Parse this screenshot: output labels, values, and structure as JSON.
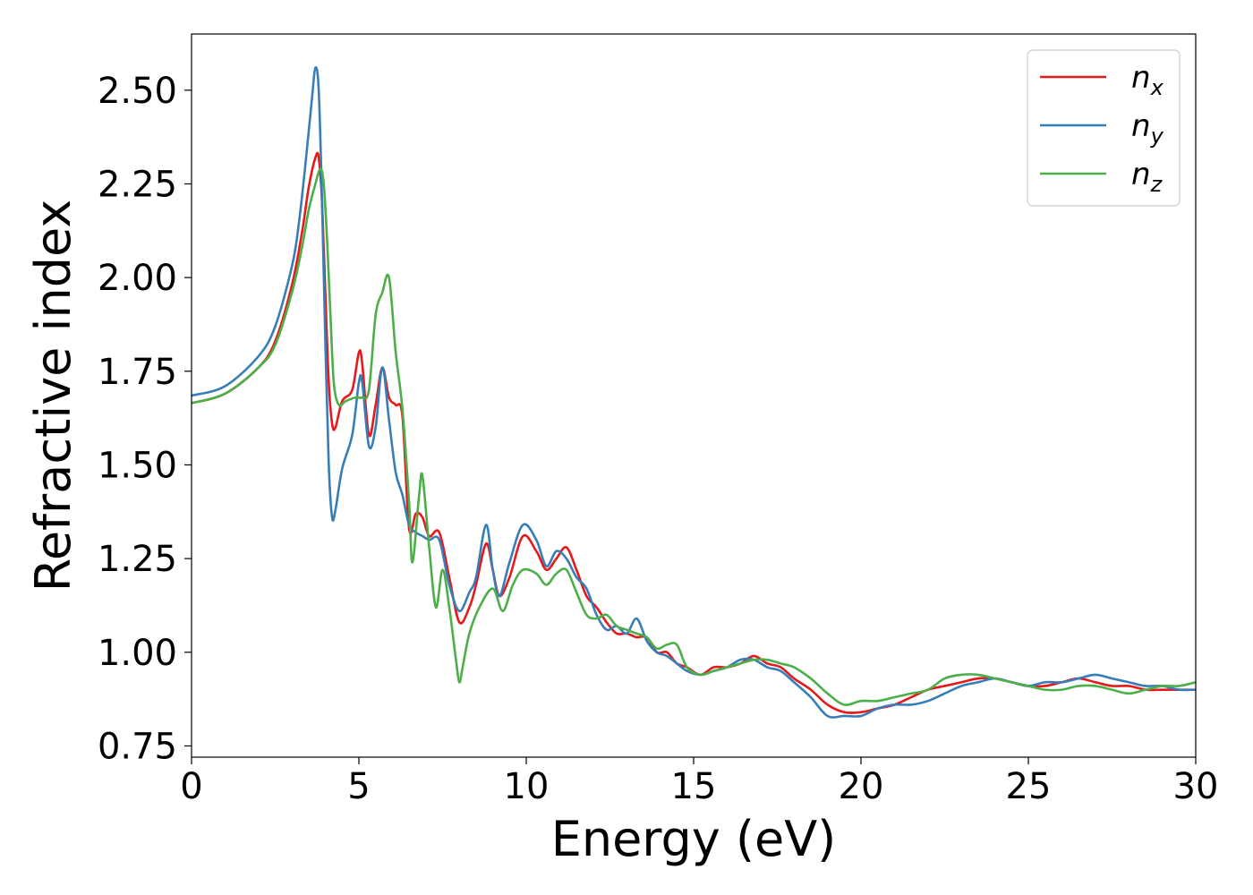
{
  "chart_data": {
    "type": "line",
    "title": "",
    "xlabel": "Energy (eV)",
    "ylabel": "Refractive index",
    "xlim": [
      0,
      30
    ],
    "ylim": [
      0.72,
      2.65
    ],
    "xticks": [
      0,
      5,
      10,
      15,
      20,
      25,
      30
    ],
    "xtick_labels": [
      "0",
      "5",
      "10",
      "15",
      "20",
      "25",
      "30"
    ],
    "yticks": [
      0.75,
      1.0,
      1.25,
      1.5,
      1.75,
      2.0,
      2.25,
      2.5
    ],
    "ytick_labels": [
      "0.75",
      "1.00",
      "1.25",
      "1.50",
      "1.75",
      "2.00",
      "2.25",
      "2.50"
    ],
    "grid": false,
    "legend_position": "top-right",
    "series": [
      {
        "name": "n",
        "subscript": "x",
        "color": "#e41a1c",
        "x": [
          0,
          1,
          2,
          2.5,
          3,
          3.3,
          3.5,
          3.7,
          3.8,
          3.9,
          4.0,
          4.1,
          4.2,
          4.3,
          4.5,
          4.8,
          5.0,
          5.1,
          5.3,
          5.5,
          5.7,
          5.9,
          6.1,
          6.3,
          6.5,
          6.7,
          6.9,
          7.1,
          7.4,
          7.7,
          8.0,
          8.3,
          8.5,
          8.8,
          9.0,
          9.2,
          9.5,
          9.9,
          10.3,
          10.6,
          10.9,
          11.2,
          11.5,
          11.8,
          12.1,
          12.4,
          12.7,
          13.0,
          13.3,
          13.6,
          13.9,
          14.2,
          14.5,
          14.8,
          15.2,
          15.6,
          16.0,
          16.4,
          16.8,
          17.2,
          17.6,
          18.0,
          18.5,
          19.0,
          19.5,
          20.0,
          20.5,
          21.0,
          21.5,
          22.0,
          22.5,
          23.0,
          23.5,
          24.0,
          24.5,
          25.0,
          25.5,
          26.0,
          26.5,
          27.0,
          27.5,
          28.0,
          28.5,
          29.0,
          29.5,
          30.0
        ],
        "y": [
          1.665,
          1.69,
          1.76,
          1.83,
          1.98,
          2.12,
          2.24,
          2.32,
          2.32,
          2.2,
          1.95,
          1.72,
          1.61,
          1.6,
          1.67,
          1.7,
          1.8,
          1.77,
          1.58,
          1.66,
          1.76,
          1.68,
          1.66,
          1.63,
          1.33,
          1.37,
          1.36,
          1.31,
          1.32,
          1.2,
          1.08,
          1.12,
          1.18,
          1.29,
          1.22,
          1.15,
          1.2,
          1.31,
          1.27,
          1.22,
          1.25,
          1.28,
          1.22,
          1.15,
          1.12,
          1.08,
          1.05,
          1.05,
          1.04,
          1.04,
          1.0,
          1.0,
          0.97,
          0.96,
          0.94,
          0.96,
          0.96,
          0.97,
          0.99,
          0.97,
          0.96,
          0.93,
          0.9,
          0.86,
          0.84,
          0.84,
          0.85,
          0.86,
          0.88,
          0.9,
          0.91,
          0.92,
          0.93,
          0.93,
          0.92,
          0.91,
          0.91,
          0.92,
          0.93,
          0.92,
          0.91,
          0.91,
          0.9,
          0.9,
          0.9,
          0.9
        ]
      },
      {
        "name": "n",
        "subscript": "y",
        "color": "#377eb8",
        "x": [
          0,
          1,
          2,
          2.5,
          3,
          3.2,
          3.4,
          3.6,
          3.7,
          3.8,
          3.9,
          4.0,
          4.1,
          4.2,
          4.3,
          4.5,
          4.8,
          5.0,
          5.1,
          5.3,
          5.5,
          5.7,
          5.9,
          6.1,
          6.3,
          6.5,
          6.7,
          6.9,
          7.1,
          7.4,
          7.7,
          8.0,
          8.3,
          8.5,
          8.8,
          9.0,
          9.2,
          9.5,
          9.9,
          10.3,
          10.6,
          10.9,
          11.2,
          11.5,
          11.8,
          12.1,
          12.4,
          12.7,
          13.0,
          13.3,
          13.6,
          13.9,
          14.2,
          14.5,
          14.8,
          15.2,
          15.6,
          16.0,
          16.4,
          16.8,
          17.2,
          17.6,
          18.0,
          18.5,
          19.0,
          19.5,
          20.0,
          20.5,
          21.0,
          21.5,
          22.0,
          22.5,
          23.0,
          23.5,
          24.0,
          24.5,
          25.0,
          25.5,
          26.0,
          26.5,
          27.0,
          27.5,
          28.0,
          28.5,
          29.0,
          29.5,
          30.0
        ],
        "y": [
          1.685,
          1.71,
          1.79,
          1.87,
          2.03,
          2.14,
          2.3,
          2.48,
          2.56,
          2.5,
          2.2,
          1.82,
          1.5,
          1.36,
          1.38,
          1.49,
          1.58,
          1.72,
          1.72,
          1.55,
          1.6,
          1.76,
          1.62,
          1.48,
          1.42,
          1.34,
          1.32,
          1.31,
          1.3,
          1.3,
          1.18,
          1.11,
          1.16,
          1.2,
          1.34,
          1.22,
          1.15,
          1.24,
          1.34,
          1.3,
          1.23,
          1.27,
          1.25,
          1.2,
          1.17,
          1.1,
          1.06,
          1.07,
          1.05,
          1.09,
          1.03,
          1.0,
          0.99,
          0.97,
          0.95,
          0.94,
          0.95,
          0.96,
          0.98,
          0.98,
          0.96,
          0.95,
          0.92,
          0.88,
          0.83,
          0.83,
          0.83,
          0.85,
          0.86,
          0.86,
          0.87,
          0.89,
          0.91,
          0.92,
          0.93,
          0.92,
          0.91,
          0.92,
          0.92,
          0.93,
          0.94,
          0.93,
          0.92,
          0.91,
          0.91,
          0.9,
          0.9
        ]
      },
      {
        "name": "n",
        "subscript": "z",
        "color": "#4daf4a",
        "x": [
          0,
          1,
          2,
          2.5,
          3,
          3.3,
          3.5,
          3.7,
          3.85,
          3.95,
          4.05,
          4.15,
          4.25,
          4.4,
          4.6,
          4.9,
          5.1,
          5.3,
          5.5,
          5.7,
          5.9,
          6.1,
          6.3,
          6.5,
          6.6,
          6.8,
          6.9,
          7.1,
          7.3,
          7.5,
          7.7,
          7.9,
          8.0,
          8.1,
          8.3,
          8.6,
          9.0,
          9.3,
          9.6,
          9.9,
          10.3,
          10.6,
          10.9,
          11.2,
          11.5,
          11.8,
          12.1,
          12.4,
          12.7,
          13.0,
          13.3,
          13.6,
          13.9,
          14.2,
          14.5,
          14.8,
          15.2,
          15.6,
          16.0,
          16.4,
          16.8,
          17.2,
          17.6,
          18.0,
          18.5,
          19.0,
          19.5,
          20.0,
          20.5,
          21.0,
          21.5,
          22.0,
          22.5,
          23.0,
          23.5,
          24.0,
          24.5,
          25.0,
          25.5,
          26.0,
          26.5,
          27.0,
          27.5,
          28.0,
          28.5,
          29.0,
          29.5,
          30.0
        ],
        "y": [
          1.665,
          1.69,
          1.76,
          1.82,
          1.96,
          2.08,
          2.18,
          2.25,
          2.29,
          2.25,
          2.1,
          1.9,
          1.72,
          1.66,
          1.67,
          1.68,
          1.68,
          1.7,
          1.9,
          1.96,
          2.0,
          1.8,
          1.65,
          1.4,
          1.24,
          1.42,
          1.47,
          1.28,
          1.12,
          1.22,
          1.12,
          0.98,
          0.92,
          0.96,
          1.05,
          1.12,
          1.17,
          1.11,
          1.18,
          1.22,
          1.21,
          1.18,
          1.21,
          1.22,
          1.16,
          1.1,
          1.09,
          1.1,
          1.07,
          1.06,
          1.05,
          1.04,
          1.01,
          1.02,
          1.02,
          0.96,
          0.94,
          0.95,
          0.96,
          0.97,
          0.98,
          0.98,
          0.97,
          0.96,
          0.93,
          0.89,
          0.86,
          0.87,
          0.87,
          0.88,
          0.89,
          0.9,
          0.93,
          0.94,
          0.94,
          0.93,
          0.92,
          0.91,
          0.9,
          0.9,
          0.91,
          0.91,
          0.9,
          0.89,
          0.9,
          0.91,
          0.91,
          0.92
        ]
      }
    ]
  }
}
